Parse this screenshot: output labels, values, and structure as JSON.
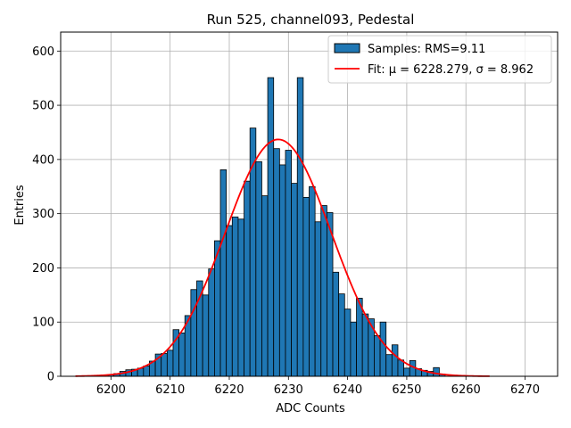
{
  "chart_data": {
    "type": "histogram",
    "title": "Run 525, channel093, Pedestal",
    "xlabel": "ADC Counts",
    "ylabel": "Entries",
    "xlim": [
      6191.5,
      6275.5
    ],
    "ylim": [
      0,
      635
    ],
    "xticks": [
      6200,
      6210,
      6220,
      6230,
      6240,
      6250,
      6260,
      6270
    ],
    "yticks": [
      0,
      100,
      200,
      300,
      400,
      500,
      600
    ],
    "grid": true,
    "bar_color": "#1f77b4",
    "fit_color": "#ff0000",
    "bins": [
      {
        "x": 6200,
        "count": 3
      },
      {
        "x": 6201,
        "count": 5
      },
      {
        "x": 6202,
        "count": 9
      },
      {
        "x": 6203,
        "count": 12
      },
      {
        "x": 6204,
        "count": 13
      },
      {
        "x": 6205,
        "count": 15
      },
      {
        "x": 6206,
        "count": 19
      },
      {
        "x": 6207,
        "count": 28
      },
      {
        "x": 6208,
        "count": 41
      },
      {
        "x": 6209,
        "count": 42
      },
      {
        "x": 6210,
        "count": 48
      },
      {
        "x": 6211,
        "count": 86
      },
      {
        "x": 6212,
        "count": 80
      },
      {
        "x": 6213,
        "count": 112
      },
      {
        "x": 6214,
        "count": 160
      },
      {
        "x": 6215,
        "count": 176
      },
      {
        "x": 6216,
        "count": 150
      },
      {
        "x": 6217,
        "count": 198
      },
      {
        "x": 6218,
        "count": 250
      },
      {
        "x": 6219,
        "count": 381
      },
      {
        "x": 6220,
        "count": 278
      },
      {
        "x": 6221,
        "count": 294
      },
      {
        "x": 6222,
        "count": 290
      },
      {
        "x": 6223,
        "count": 360
      },
      {
        "x": 6224,
        "count": 458
      },
      {
        "x": 6225,
        "count": 396
      },
      {
        "x": 6226,
        "count": 333
      },
      {
        "x": 6227,
        "count": 551
      },
      {
        "x": 6228,
        "count": 420
      },
      {
        "x": 6229,
        "count": 390
      },
      {
        "x": 6230,
        "count": 417
      },
      {
        "x": 6231,
        "count": 356
      },
      {
        "x": 6232,
        "count": 551
      },
      {
        "x": 6233,
        "count": 330
      },
      {
        "x": 6234,
        "count": 350
      },
      {
        "x": 6235,
        "count": 285
      },
      {
        "x": 6236,
        "count": 315
      },
      {
        "x": 6237,
        "count": 302
      },
      {
        "x": 6238,
        "count": 192
      },
      {
        "x": 6239,
        "count": 152
      },
      {
        "x": 6240,
        "count": 124
      },
      {
        "x": 6241,
        "count": 100
      },
      {
        "x": 6242,
        "count": 144
      },
      {
        "x": 6243,
        "count": 115
      },
      {
        "x": 6244,
        "count": 106
      },
      {
        "x": 6245,
        "count": 75
      },
      {
        "x": 6246,
        "count": 100
      },
      {
        "x": 6247,
        "count": 40
      },
      {
        "x": 6248,
        "count": 58
      },
      {
        "x": 6249,
        "count": 30
      },
      {
        "x": 6250,
        "count": 15
      },
      {
        "x": 6251,
        "count": 29
      },
      {
        "x": 6252,
        "count": 14
      },
      {
        "x": 6253,
        "count": 11
      },
      {
        "x": 6254,
        "count": 9
      },
      {
        "x": 6255,
        "count": 16
      },
      {
        "x": 6256,
        "count": 4
      }
    ],
    "fit": {
      "mu": 6228.279,
      "sigma": 8.962,
      "amplitude": 437,
      "x_range": [
        6194,
        6264
      ]
    },
    "legend": {
      "location": "top-right",
      "entries": [
        {
          "label": "Samples: RMS=9.11",
          "kind": "bar"
        },
        {
          "label": "Fit: μ = 6228.279, σ = 8.962",
          "kind": "line"
        }
      ]
    }
  }
}
